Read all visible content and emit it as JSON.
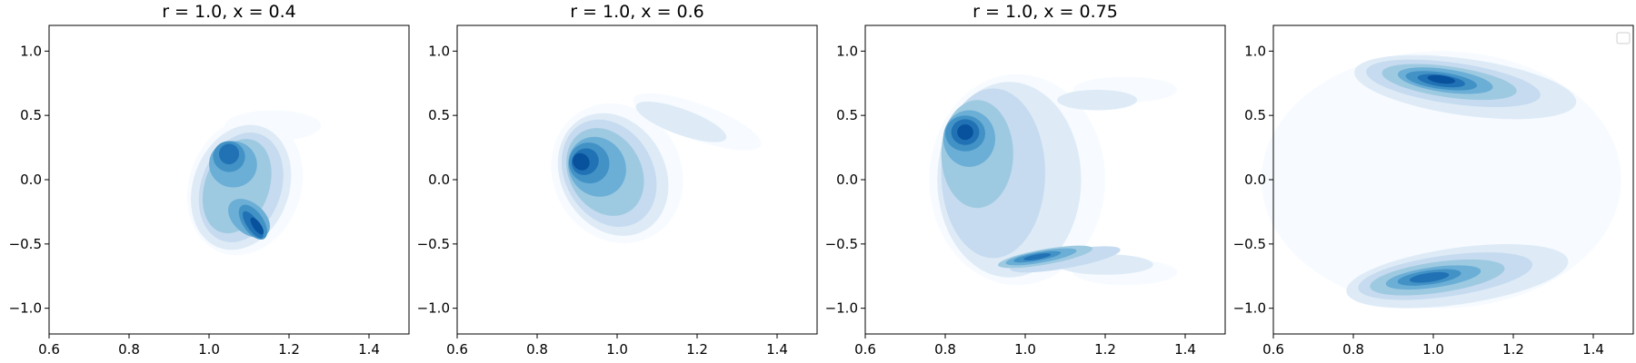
{
  "figure": {
    "colormap": [
      "#f7fbff",
      "#deebf7",
      "#c6dbef",
      "#9ecae1",
      "#6baed6",
      "#4292c6",
      "#2171b5",
      "#08519c"
    ]
  },
  "chart_data": [
    {
      "type": "contour",
      "title": "r = 1.0, x = 0.4",
      "xlim": [
        0.6,
        1.5
      ],
      "ylim": [
        -1.2,
        1.2
      ],
      "xticks": [
        0.6,
        0.8,
        1.0,
        1.2,
        1.4
      ],
      "xtick_labels": [
        "0.6",
        "0.8",
        "1.0",
        "1.2",
        "1.4"
      ],
      "yticks": [
        -1.0,
        -0.5,
        0.0,
        0.5,
        1.0
      ],
      "ytick_labels": [
        "−1.0",
        "−0.5",
        "0.0",
        "0.5",
        "1.0"
      ],
      "grid": false,
      "legend": null,
      "density_ridge": {
        "description": "crescent opening to the right",
        "x": [
          1.1,
          1.03,
          1.01,
          1.04,
          1.1,
          1.18
        ],
        "y": [
          0.3,
          0.15,
          0.0,
          -0.2,
          -0.32,
          -0.42
        ],
        "peaks": [
          {
            "x": 1.11,
            "y": -0.35
          },
          {
            "x": 1.05,
            "y": 0.2
          }
        ]
      }
    },
    {
      "type": "contour",
      "title": "r = 1.0, x = 0.6",
      "xlim": [
        0.6,
        1.5
      ],
      "ylim": [
        -1.2,
        1.2
      ],
      "xticks": [
        0.6,
        0.8,
        1.0,
        1.2,
        1.4
      ],
      "xtick_labels": [
        "0.6",
        "0.8",
        "1.0",
        "1.2",
        "1.4"
      ],
      "yticks": [
        -1.0,
        -0.5,
        0.0,
        0.5,
        1.0
      ],
      "ytick_labels": [
        "−1.0",
        "−0.5",
        "0.0",
        "0.5",
        "1.0"
      ],
      "grid": false,
      "legend": null,
      "density_ridge": {
        "description": "crescent opening to the right",
        "x": [
          1.3,
          1.15,
          1.0,
          0.9,
          0.92,
          1.05,
          1.18
        ],
        "y": [
          0.62,
          0.55,
          0.35,
          0.1,
          -0.15,
          -0.35,
          -0.45
        ],
        "peaks": [
          {
            "x": 0.92,
            "y": 0.12
          },
          {
            "x": 1.06,
            "y": 0.35
          }
        ]
      }
    },
    {
      "type": "contour",
      "title": "r = 1.0, x = 0.75",
      "xlim": [
        0.6,
        1.5
      ],
      "ylim": [
        -1.2,
        1.2
      ],
      "xticks": [
        0.6,
        0.8,
        1.0,
        1.2,
        1.4
      ],
      "xtick_labels": [
        "0.6",
        "0.8",
        "1.0",
        "1.2",
        "1.4"
      ],
      "yticks": [
        -1.0,
        -0.5,
        0.0,
        0.5,
        1.0
      ],
      "ytick_labels": [
        "−1.0",
        "−0.5",
        "0.0",
        "0.5",
        "1.0"
      ],
      "grid": false,
      "legend": null,
      "density_ridge": {
        "description": "wide crescent opening to the right",
        "x": [
          1.3,
          1.1,
          0.95,
          0.84,
          0.82,
          0.88,
          1.0,
          1.15,
          1.3
        ],
        "y": [
          0.72,
          0.68,
          0.58,
          0.4,
          0.1,
          -0.35,
          -0.55,
          -0.65,
          -0.72
        ],
        "peaks": [
          {
            "x": 0.85,
            "y": 0.37
          },
          {
            "x": 1.03,
            "y": -0.6
          }
        ]
      }
    },
    {
      "type": "contour",
      "title": "",
      "xlim": [
        0.6,
        1.5
      ],
      "ylim": [
        -1.2,
        1.2
      ],
      "xticks": [
        0.6,
        0.8,
        1.0,
        1.2,
        1.4
      ],
      "xtick_labels": [
        "0.6",
        "0.8",
        "1.0",
        "1.2",
        "1.4"
      ],
      "yticks": [
        -1.0,
        -0.5,
        0.0,
        0.5,
        1.0
      ],
      "ytick_labels": [
        "−1.0",
        "−0.5",
        "0.0",
        "0.5",
        "1.0"
      ],
      "grid": false,
      "legend": {
        "placement": "top-right",
        "entries": []
      },
      "density_ridge": {
        "description": "two horizontal bands with faint connection",
        "upper_band": {
          "x": [
            0.8,
            1.0,
            1.2,
            1.4
          ],
          "y": [
            0.6,
            0.75,
            0.8,
            0.88
          ]
        },
        "lower_band": {
          "x": [
            0.8,
            1.0,
            1.2,
            1.4
          ],
          "y": [
            -0.6,
            -0.75,
            -0.82,
            -0.9
          ]
        },
        "peaks": [
          {
            "x": 1.02,
            "y": 0.77
          },
          {
            "x": 0.99,
            "y": -0.75
          }
        ]
      }
    }
  ]
}
